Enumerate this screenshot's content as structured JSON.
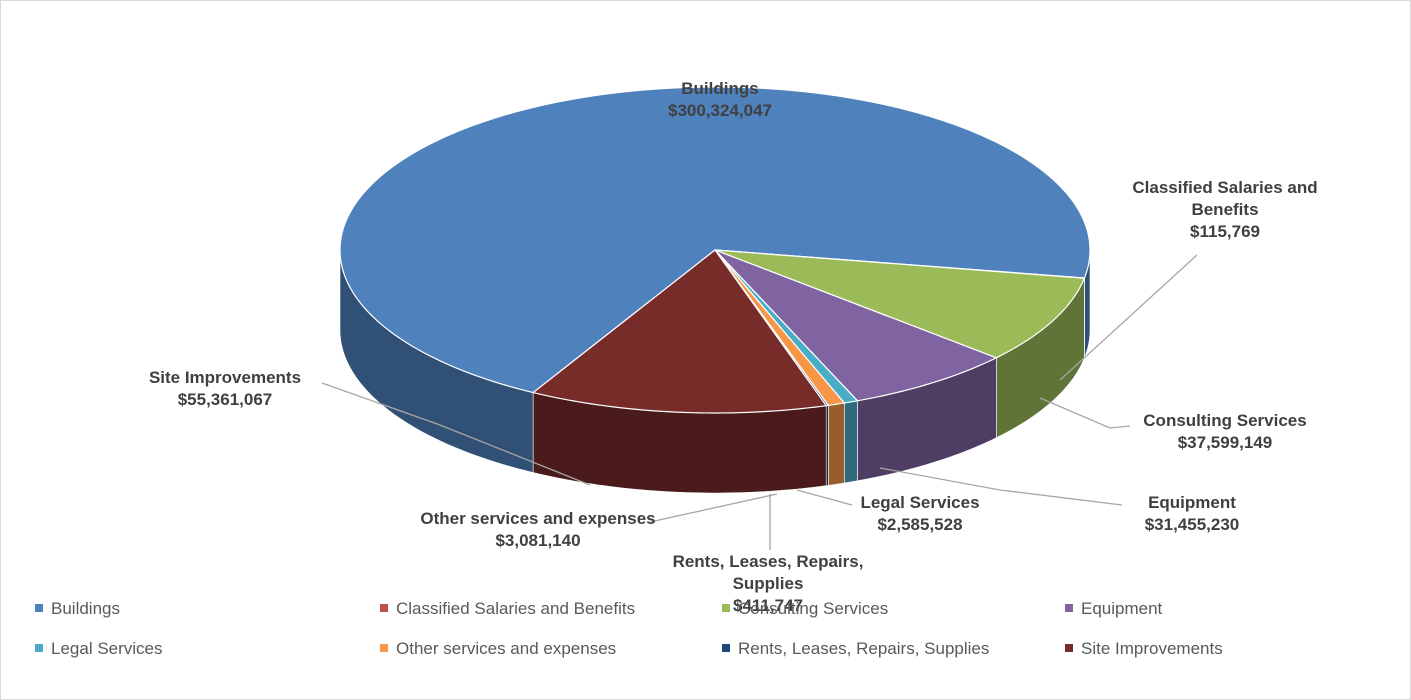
{
  "chart_data": {
    "type": "pie",
    "three_d": true,
    "legend": "bottom",
    "categories": [
      "Buildings",
      "Classified Salaries and Benefits",
      "Consulting Services",
      "Equipment",
      "Legal Services",
      "Other services and expenses",
      "Rents, Leases, Repairs, Supplies",
      "Site Improvements"
    ],
    "values": [
      300324047,
      115769,
      37599149,
      31455230,
      2585528,
      3081140,
      411747,
      55361067
    ],
    "value_labels": [
      "$300,324,047",
      "$115,769",
      "$37,599,149",
      "$31,455,230",
      "$2,585,528",
      "$3,081,140",
      "$411,747",
      "$55,361,067"
    ],
    "colors": [
      "#4f81bd",
      "#c0504d",
      "#9bbb59",
      "#8064a2",
      "#4bacc6",
      "#f79646",
      "#1f497d",
      "#772c2a"
    ]
  }
}
